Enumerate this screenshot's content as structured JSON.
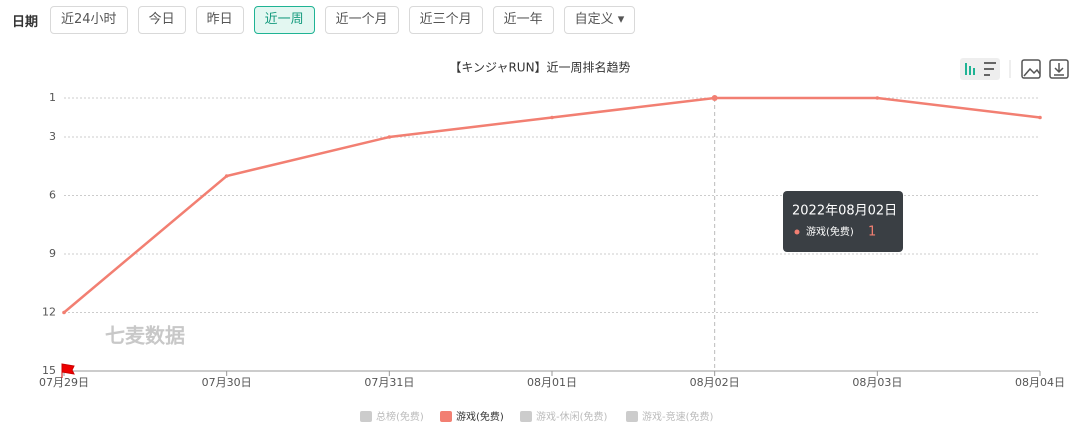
{
  "filter": {
    "label": "日期",
    "buttons": [
      "近24小时",
      "今日",
      "昨日",
      "近一周",
      "近一个月",
      "近三个月",
      "近一年",
      "自定义"
    ],
    "active": 3,
    "dropdown": 7
  },
  "chart_data": {
    "type": "line",
    "title": "【キンジャRUN】近一周排名趋势",
    "categories": [
      "07月29日",
      "07月30日",
      "07月31日",
      "08月01日",
      "08月02日",
      "08月03日",
      "08月04日"
    ],
    "series": [
      {
        "name": "游戏(免费)",
        "color": "#f27f72",
        "values": [
          12,
          5,
          3,
          2,
          1,
          1,
          2
        ]
      }
    ],
    "ylim": [
      1,
      15
    ],
    "yticks": [
      1,
      3,
      6,
      9,
      12,
      15
    ],
    "y_inverted": true,
    "grid": true,
    "legend": [
      {
        "name": "总榜(免费)",
        "color": "#cccccc"
      },
      {
        "name": "游戏(免费)",
        "color": "#f27f72"
      },
      {
        "name": "游戏-休闲(免费)",
        "color": "#cccccc"
      },
      {
        "name": "游戏-竞速(免费)",
        "color": "#cccccc"
      }
    ],
    "watermark": "七麦数据",
    "tooltip": {
      "title": "2022年08月02日",
      "name": "游戏(免费)",
      "value": 1,
      "index": 4
    }
  }
}
